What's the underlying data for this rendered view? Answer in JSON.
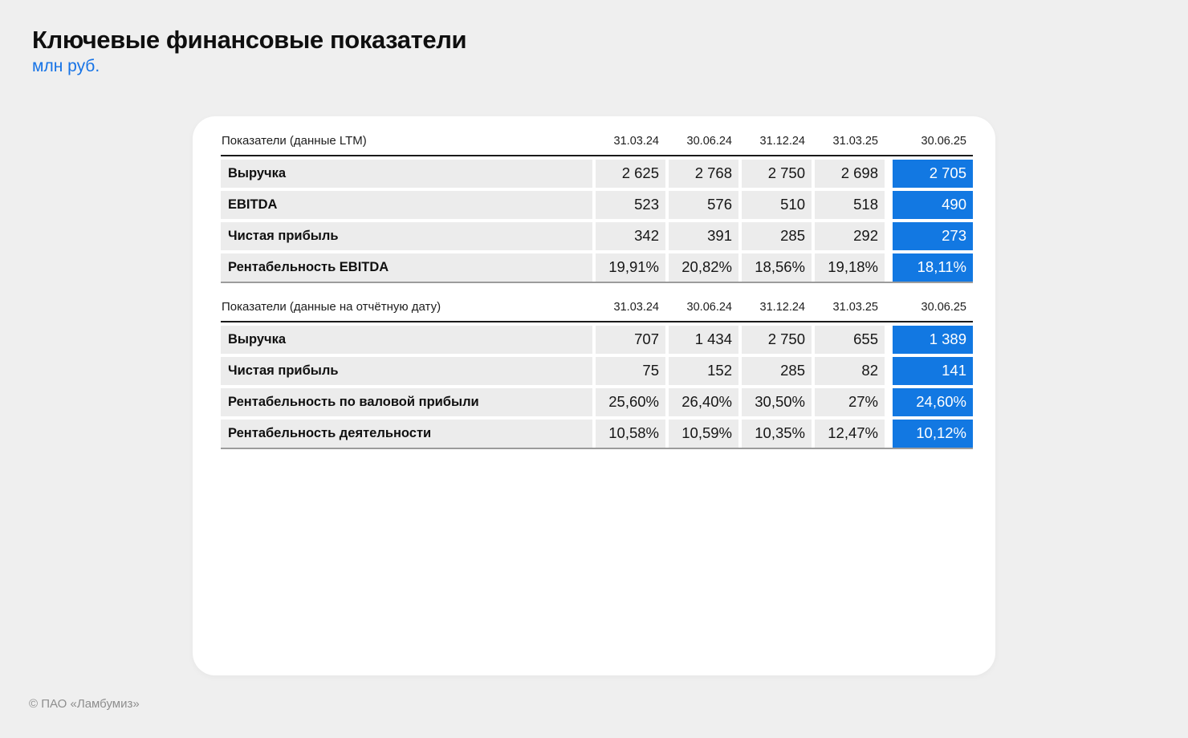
{
  "page": {
    "title": "Ключевые финансовые показатели",
    "subtitle": "млн руб.",
    "footer": "© ПАО «Ламбумиз»"
  },
  "colors": {
    "page_bg": "#EFEFEF",
    "card_bg": "#FFFFFF",
    "row_bg": "#ECECEC",
    "accent_blue": "#1278E2",
    "subtitle_blue": "#1673E6"
  },
  "tables": [
    {
      "title": "Показатели (данные LTM)",
      "columns": [
        "31.03.24",
        "30.06.24",
        "31.12.24",
        "31.03.25",
        "30.06.25"
      ],
      "rows": [
        {
          "label": "Выручка",
          "values": [
            "2 625",
            "2 768",
            "2 750",
            "2 698",
            "2 705"
          ]
        },
        {
          "label": "EBITDA",
          "values": [
            "523",
            "576",
            "510",
            "518",
            "490"
          ]
        },
        {
          "label": "Чистая прибыль",
          "values": [
            "342",
            "391",
            "285",
            "292",
            "273"
          ]
        },
        {
          "label": "Рентабельность EBITDA",
          "values": [
            "19,91%",
            "20,82%",
            "18,56%",
            "19,18%",
            "18,11%"
          ]
        }
      ]
    },
    {
      "title": "Показатели (данные на отчётную дату)",
      "columns": [
        "31.03.24",
        "30.06.24",
        "31.12.24",
        "31.03.25",
        "30.06.25"
      ],
      "rows": [
        {
          "label": "Выручка",
          "values": [
            "707",
            "1 434",
            "2 750",
            "655",
            "1 389"
          ]
        },
        {
          "label": "Чистая прибыль",
          "values": [
            "75",
            "152",
            "285",
            "82",
            "141"
          ]
        },
        {
          "label": "Рентабельность по валовой прибыли",
          "values": [
            "25,60%",
            "26,40%",
            "30,50%",
            "27%",
            "24,60%"
          ]
        },
        {
          "label": "Рентабельность деятельности",
          "values": [
            "10,58%",
            "10,59%",
            "10,35%",
            "12,47%",
            "10,12%"
          ]
        }
      ]
    }
  ]
}
